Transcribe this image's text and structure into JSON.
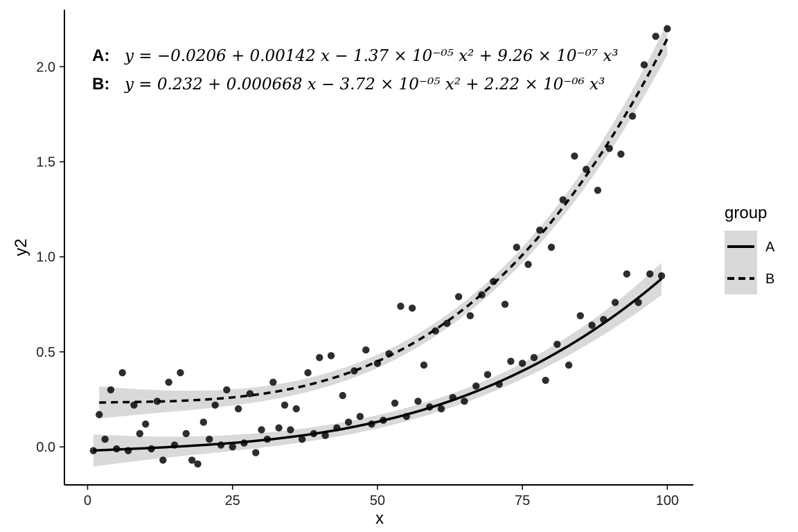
{
  "chart_data": {
    "type": "scatter",
    "xlabel": "x",
    "ylabel": "y2",
    "xlim": [
      -4,
      104.5
    ],
    "ylim": [
      -0.2,
      2.3
    ],
    "x_ticks": [
      0,
      25,
      50,
      75,
      100
    ],
    "y_ticks": [
      0.0,
      0.5,
      1.0,
      1.5,
      2.0
    ],
    "x_tick_labels": [
      "0",
      "25",
      "50",
      "75",
      "100"
    ],
    "y_tick_labels": [
      "0.0",
      "0.5",
      "1.0",
      "1.5",
      "2.0"
    ],
    "grid": false,
    "legend": {
      "title": "group",
      "placement": "right",
      "entries": [
        {
          "label": "A",
          "line_style": "solid"
        },
        {
          "label": "B",
          "line_style": "dashed"
        }
      ]
    },
    "equations": [
      {
        "group": "A",
        "prefix": "A:",
        "text": "y = −0.0206 + 0.00142 x − 1.37 × 10⁻⁰⁵ x² + 9.26 × 10⁻⁰⁷ x³"
      },
      {
        "group": "B",
        "prefix": "B:",
        "text": "y = 0.232 + 0.000668 x − 3.72 × 10⁻⁰⁵ x² + 2.22 × 10⁻⁰⁶ x³"
      }
    ],
    "series": [
      {
        "name": "A",
        "line_style": "solid",
        "fit_coefficients": [
          -0.0206,
          0.00142,
          -1.37e-05,
          9.26e-07
        ],
        "fit_range": [
          1,
          99
        ],
        "x": [
          1,
          3,
          5,
          7,
          9,
          11,
          13,
          15,
          17,
          19,
          21,
          23,
          25,
          27,
          29,
          31,
          33,
          35,
          37,
          39,
          41,
          43,
          45,
          47,
          49,
          51,
          53,
          55,
          57,
          59,
          61,
          63,
          65,
          67,
          69,
          71,
          73,
          75,
          77,
          79,
          81,
          83,
          85,
          87,
          89,
          91,
          93,
          95,
          97,
          99
        ],
        "y": [
          -0.02,
          0.04,
          -0.01,
          -0.02,
          0.07,
          -0.01,
          -0.07,
          0.01,
          0.07,
          -0.09,
          0.04,
          0.01,
          0.0,
          0.02,
          -0.03,
          0.04,
          0.1,
          0.09,
          0.04,
          0.07,
          0.06,
          0.1,
          0.13,
          0.16,
          0.12,
          0.14,
          0.23,
          0.16,
          0.24,
          0.21,
          0.2,
          0.26,
          0.24,
          0.32,
          0.38,
          0.33,
          0.45,
          0.44,
          0.47,
          0.35,
          0.54,
          0.43,
          0.69,
          0.64,
          0.67,
          0.76,
          0.91,
          0.76,
          0.91,
          0.9
        ]
      },
      {
        "name": "B",
        "line_style": "dashed",
        "fit_coefficients": [
          0.232,
          0.000668,
          -3.72e-05,
          2.22e-06
        ],
        "fit_range": [
          2,
          100
        ],
        "x": [
          2,
          4,
          6,
          8,
          10,
          12,
          14,
          16,
          18,
          20,
          22,
          24,
          26,
          28,
          30,
          32,
          34,
          36,
          38,
          40,
          42,
          44,
          46,
          48,
          50,
          52,
          54,
          56,
          58,
          60,
          62,
          64,
          66,
          68,
          70,
          72,
          74,
          76,
          78,
          80,
          82,
          84,
          86,
          88,
          90,
          92,
          94,
          96,
          98,
          100
        ],
        "y": [
          0.17,
          0.3,
          0.39,
          0.22,
          0.12,
          0.24,
          0.34,
          0.39,
          -0.07,
          0.13,
          0.22,
          0.3,
          0.2,
          0.28,
          0.09,
          0.34,
          0.22,
          0.2,
          0.39,
          0.47,
          0.48,
          0.27,
          0.4,
          0.51,
          0.44,
          0.49,
          0.74,
          0.73,
          0.43,
          0.61,
          0.65,
          0.79,
          0.69,
          0.8,
          0.87,
          0.75,
          1.05,
          0.96,
          1.14,
          1.05,
          1.3,
          1.53,
          1.46,
          1.35,
          1.57,
          1.54,
          1.74,
          2.01,
          2.16,
          2.2
        ]
      }
    ]
  },
  "colors": {
    "points": "#000000",
    "fit_line": "#000000",
    "ribbon": "#d9d9d9",
    "legend_key_bg": "#d9d9d9",
    "axis": "#000000"
  }
}
